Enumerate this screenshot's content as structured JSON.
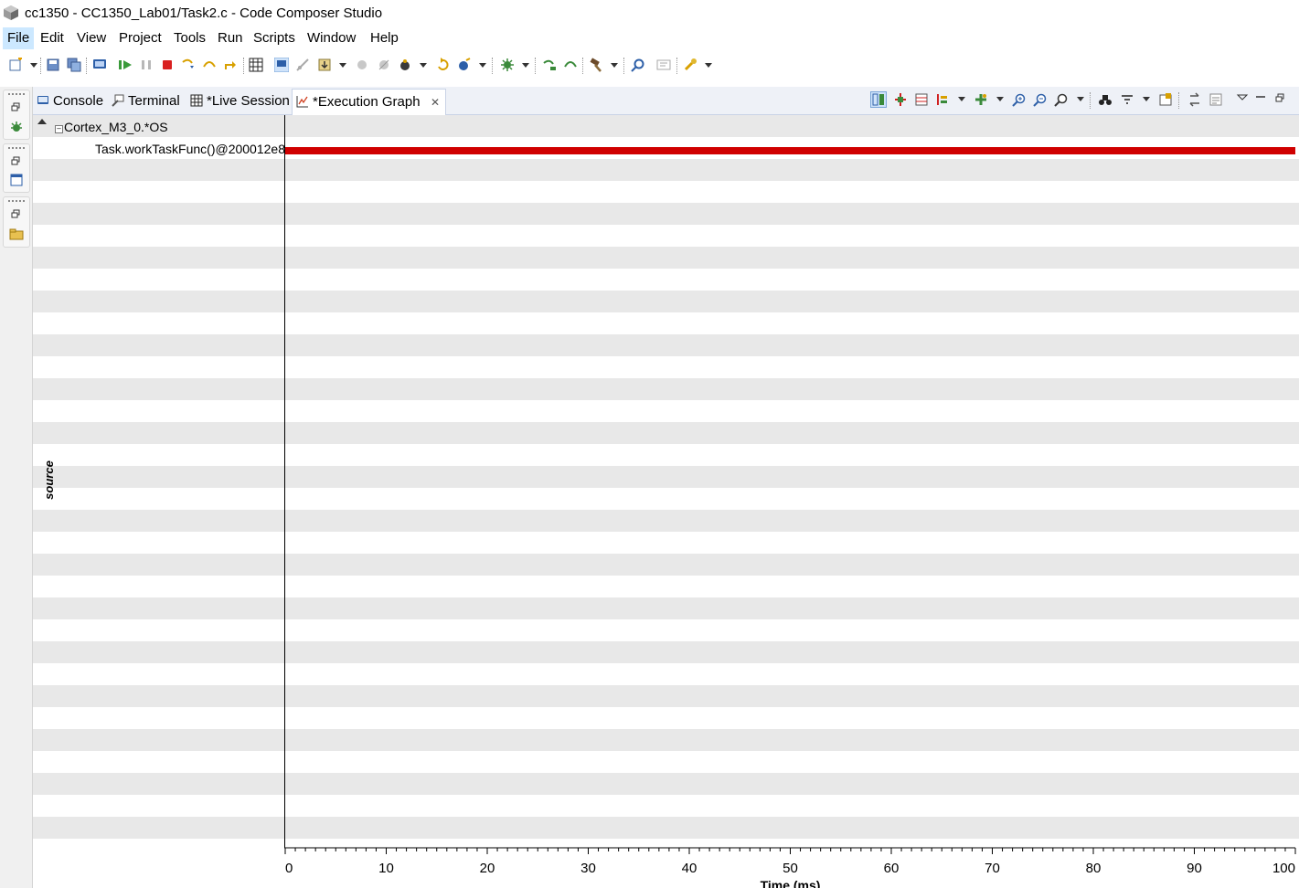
{
  "window": {
    "title": "cc1350 - CC1350_Lab01/Task2.c - Code Composer Studio"
  },
  "menubar": {
    "items": [
      {
        "label": "File",
        "active": true
      },
      {
        "label": "Edit"
      },
      {
        "label": "View"
      },
      {
        "label": "Project"
      },
      {
        "label": "Tools"
      },
      {
        "label": "Run"
      },
      {
        "label": "Scripts"
      },
      {
        "label": "Window"
      },
      {
        "label": "Help"
      }
    ]
  },
  "toolbar": {
    "icons": [
      "new-icon",
      "save-icon",
      "save-all-icon",
      "debug-view-icon",
      "resume-icon",
      "suspend-icon",
      "terminate-icon",
      "step-into-icon",
      "step-over-icon",
      "step-return-icon",
      "memory-browser-icon",
      "connect-target-icon",
      "disconnect-icon",
      "load-program-icon",
      "breakpoint-icon",
      "breakpoint-disabled-icon",
      "debug-icon",
      "restart-icon",
      "reset-icon",
      "build-icon",
      "assembly-step-into-icon",
      "assembly-step-over-icon",
      "tools-hammer-icon",
      "search-icon",
      "ui-compact-icon",
      "external-tools-icon"
    ]
  },
  "tabs": [
    {
      "label": "Console",
      "icon": "console-icon"
    },
    {
      "label": "Terminal",
      "icon": "terminal-icon"
    },
    {
      "label": "*Live Session",
      "icon": "table-icon"
    },
    {
      "label": "*Execution Graph",
      "icon": "graph-icon",
      "active": true
    }
  ],
  "graph": {
    "rows": {
      "core": "Cortex_M3_0.*OS",
      "task": "Task.workTaskFunc()@200012e8"
    },
    "y_axis_label": "source",
    "x_axis_label": "Time (ms)"
  },
  "chart_data": {
    "type": "bar",
    "xlabel": "Time (ms)",
    "ylabel": "source",
    "xlim": [
      0,
      100
    ],
    "x_ticks": [
      0,
      10,
      20,
      30,
      40,
      50,
      60,
      70,
      80,
      90,
      100
    ],
    "series": [
      {
        "name": "Task.workTaskFunc()@200012e8",
        "start": 0,
        "end": 100
      }
    ]
  },
  "colors": {
    "execution_bar": "#d00000",
    "stripe": "#e8e8e8",
    "menu_active": "#cce8ff"
  }
}
